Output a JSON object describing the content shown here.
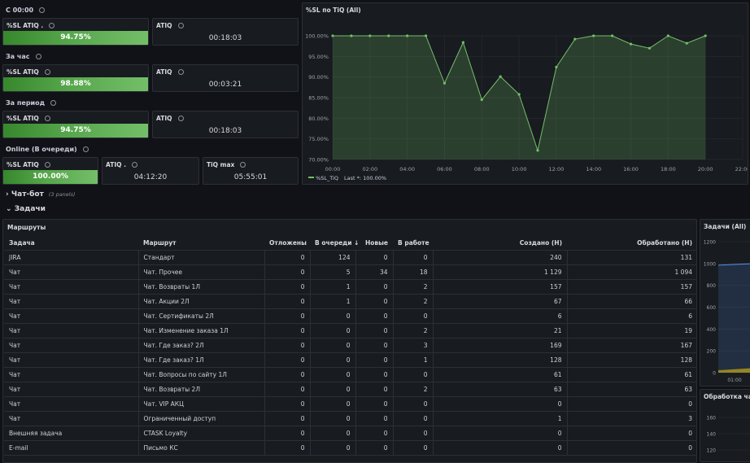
{
  "sections": {
    "s1": "С 00:00",
    "s2": "За час",
    "s3": "За период",
    "s4": "Online (В очереди)"
  },
  "stats": {
    "r1": {
      "sl_title": "%SL ATIQ .",
      "sl_value": "94.75%",
      "atiq_title": "ATIQ",
      "atiq_value": "00:18:03"
    },
    "r2": {
      "sl_title": "%SL ATIQ",
      "sl_value": "98.88%",
      "atiq_title": "ATIQ",
      "atiq_value": "00:03:21"
    },
    "r3": {
      "sl_title": "%SL ATIQ",
      "sl_value": "94.75%",
      "atiq_title": "ATIQ",
      "atiq_value": "00:18:03"
    },
    "r4": {
      "sl_title": "%SL ATIQ",
      "sl_value": "100.00%",
      "atiq_title": "ATIQ .",
      "atiq_value": "04:12:20",
      "tiq_title": "TiQ max",
      "tiq_value": "05:55:01"
    }
  },
  "chart_panel": {
    "title": "%SL по TiQ (All)",
    "legend_label": "%SL_TiQ",
    "legend_last": "Last *: 100.00%"
  },
  "chart_data": {
    "type": "line",
    "x": [
      "00:00",
      "01:00",
      "02:00",
      "03:00",
      "04:00",
      "05:00",
      "06:00",
      "07:00",
      "08:00",
      "09:00",
      "10:00",
      "11:00",
      "12:00",
      "13:00",
      "14:00",
      "15:00",
      "16:00",
      "17:00",
      "18:00",
      "19:00",
      "20:00"
    ],
    "series": [
      {
        "name": "%SL_TiQ",
        "values": [
          100,
          100,
          100,
          100,
          100,
          100,
          88.5,
          98.4,
          84.5,
          90.1,
          85.8,
          72.2,
          92.4,
          99.2,
          100,
          100,
          98,
          97,
          100,
          98.2,
          100
        ]
      }
    ],
    "ylim": [
      70,
      100
    ],
    "yticks": [
      "100.00%",
      "95.00%",
      "90.00%",
      "85.00%",
      "80.00%",
      "75.00%",
      "70.00%"
    ],
    "xticks": [
      "00:00",
      "02:00",
      "04:00",
      "06:00",
      "08:00",
      "10:00",
      "12:00",
      "14:00",
      "16:00",
      "18:00",
      "20:00",
      "22:00"
    ],
    "xlim_hours": [
      0,
      22
    ],
    "color": "#73bf69"
  },
  "rows": {
    "chatbot": "Чат-бот",
    "chatbot_count": "(3 panels)",
    "tasks": "Задачи"
  },
  "table": {
    "title": "Маршруты",
    "headers": [
      "Задача",
      "Маршрут",
      "Отложены",
      "В очереди ↓",
      "Новые",
      "В работе",
      "Создано (Н)",
      "Обработано (Н)"
    ],
    "rows": [
      [
        "JIRA",
        "Стандарт",
        "0",
        "124",
        "0",
        "0",
        "240",
        "131"
      ],
      [
        "Чат",
        "Чат. Прочее",
        "0",
        "5",
        "34",
        "18",
        "1 129",
        "1 094"
      ],
      [
        "Чат",
        "Чат. Возвраты 1Л",
        "0",
        "1",
        "0",
        "2",
        "157",
        "157"
      ],
      [
        "Чат",
        "Чат. Акции 2Л",
        "0",
        "1",
        "0",
        "2",
        "67",
        "66"
      ],
      [
        "Чат",
        "Чат. Сертификаты 2Л",
        "0",
        "0",
        "0",
        "0",
        "6",
        "6"
      ],
      [
        "Чат",
        "Чат. Изменение заказа 1Л",
        "0",
        "0",
        "0",
        "2",
        "21",
        "19"
      ],
      [
        "Чат",
        "Чат. Где заказ? 2Л",
        "0",
        "0",
        "0",
        "3",
        "169",
        "167"
      ],
      [
        "Чат",
        "Чат. Где заказ? 1Л",
        "0",
        "0",
        "0",
        "1",
        "128",
        "128"
      ],
      [
        "Чат",
        "Чат. Вопросы по сайту 1Л",
        "0",
        "0",
        "0",
        "0",
        "61",
        "61"
      ],
      [
        "Чат",
        "Чат. Возвраты 2Л",
        "0",
        "0",
        "0",
        "2",
        "63",
        "63"
      ],
      [
        "Чат",
        "Чат. VIP АКЦ",
        "0",
        "0",
        "0",
        "0",
        "0",
        "0"
      ],
      [
        "Чат",
        "Ограниченный доступ",
        "0",
        "0",
        "0",
        "0",
        "1",
        "3"
      ],
      [
        "Внешняя задача",
        "CTASK Loyalty",
        "0",
        "0",
        "0",
        "0",
        "0",
        "0"
      ],
      [
        "E-mail",
        "Письмо КС",
        "0",
        "0",
        "0",
        "0",
        "0",
        "0"
      ]
    ]
  },
  "side1": {
    "title": "Задачи (All)",
    "yticks": [
      "1200",
      "1000",
      "800",
      "600",
      "400",
      "200",
      "0"
    ],
    "xtick": "01:00"
  },
  "side2": {
    "title": "Обработка чато",
    "yticks": [
      "160",
      "140",
      "120"
    ]
  },
  "colors": {
    "green": "#73bf69",
    "bg": "#111217",
    "panel": "#181b1f",
    "border": "#2c2f35",
    "warn": "#f2cc0c"
  }
}
